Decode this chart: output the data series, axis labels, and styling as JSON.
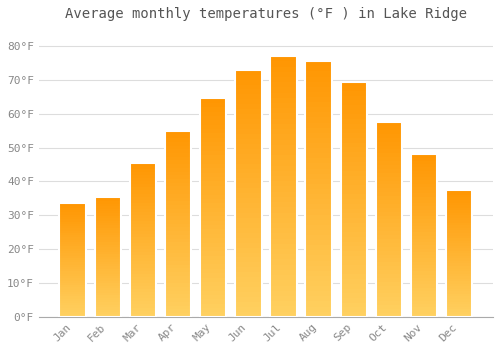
{
  "title": "Average monthly temperatures (°F ) in Lake Ridge",
  "months": [
    "Jan",
    "Feb",
    "Mar",
    "Apr",
    "May",
    "Jun",
    "Jul",
    "Aug",
    "Sep",
    "Oct",
    "Nov",
    "Dec"
  ],
  "values": [
    33.5,
    35.5,
    45.5,
    55.0,
    64.5,
    73.0,
    77.0,
    75.5,
    69.5,
    57.5,
    48.0,
    37.5
  ],
  "bar_color_top": "#FFA500",
  "bar_color_bottom": "#FFD060",
  "bar_edge_color": "#FFFFFF",
  "background_color": "#FFFFFF",
  "grid_color": "#DDDDDD",
  "ylim": [
    0,
    85
  ],
  "yticks": [
    0,
    10,
    20,
    30,
    40,
    50,
    60,
    70,
    80
  ],
  "title_fontsize": 10,
  "tick_fontsize": 8,
  "tick_color": "#888888",
  "title_color": "#555555"
}
